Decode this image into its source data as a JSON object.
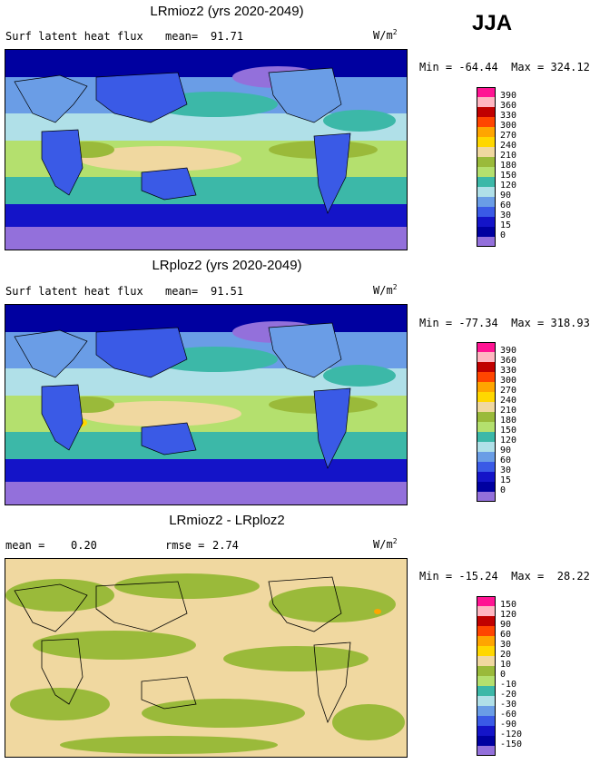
{
  "season": "JJA",
  "panels": [
    {
      "title": "LRmioz2 (yrs 2020-2049)",
      "left_label": "Surf latent heat flux",
      "stat_label": "mean=",
      "stat_value": "91.71",
      "units": "W/m",
      "units_exp": "2",
      "minmax": "Min = -64.44  Max = 324.12"
    },
    {
      "title": "LRploz2 (yrs 2020-2049)",
      "left_label": "Surf latent heat flux",
      "stat_label": "mean=",
      "stat_value": "91.51",
      "units": "W/m",
      "units_exp": "2",
      "minmax": "Min = -77.34  Max = 318.93"
    },
    {
      "title": "LRmioz2 - LRploz2",
      "left_label": "mean =",
      "left_value": "0.20",
      "stat_label": "rmse =",
      "stat_value": "2.74",
      "units": "W/m",
      "units_exp": "2",
      "minmax": "Min = -15.24  Max =  28.22"
    }
  ],
  "colorbars": [
    {
      "labels": [
        "390",
        "360",
        "330",
        "300",
        "270",
        "240",
        "210",
        "180",
        "150",
        "120",
        "90",
        "60",
        "30",
        "15",
        "0"
      ],
      "colors": [
        "#ff1493",
        "#ffb6c1",
        "#c00000",
        "#ff4500",
        "#ffa500",
        "#ffd700",
        "#f0d8a0",
        "#9aba3a",
        "#b4e06e",
        "#3cb8a8",
        "#b0e0e8",
        "#6a9de6",
        "#3a5ae6",
        "#1414c8",
        "#0000a0",
        "#9370db"
      ]
    },
    {
      "labels": [
        "390",
        "360",
        "330",
        "300",
        "270",
        "240",
        "210",
        "180",
        "150",
        "120",
        "90",
        "60",
        "30",
        "15",
        "0"
      ],
      "colors": [
        "#ff1493",
        "#ffb6c1",
        "#c00000",
        "#ff4500",
        "#ffa500",
        "#ffd700",
        "#f0d8a0",
        "#9aba3a",
        "#b4e06e",
        "#3cb8a8",
        "#b0e0e8",
        "#6a9de6",
        "#3a5ae6",
        "#1414c8",
        "#0000a0",
        "#9370db"
      ]
    },
    {
      "labels": [
        "150",
        "120",
        "90",
        "60",
        "30",
        "20",
        "10",
        "0",
        "-10",
        "-20",
        "-30",
        "-60",
        "-90",
        "-120",
        "-150"
      ],
      "colors": [
        "#ff1493",
        "#ffb6c1",
        "#c00000",
        "#ff4500",
        "#ffa500",
        "#ffd700",
        "#f0d8a0",
        "#9aba3a",
        "#b4e06e",
        "#3cb8a8",
        "#b0e0e8",
        "#6a9de6",
        "#3a5ae6",
        "#1414c8",
        "#0000a0",
        "#9370db"
      ]
    }
  ]
}
